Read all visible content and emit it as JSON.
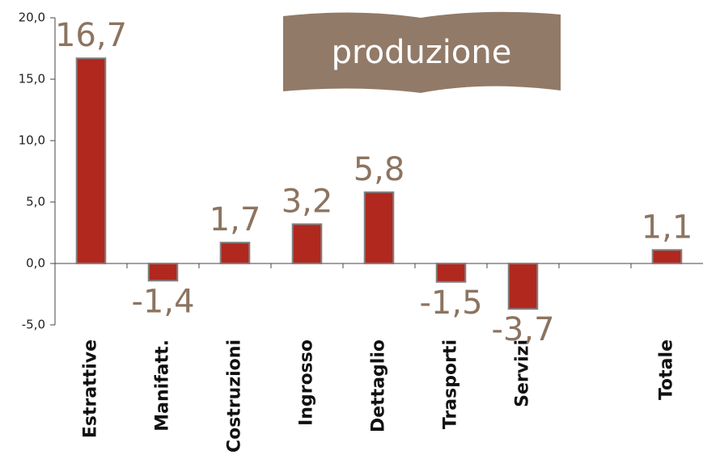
{
  "chart_data": {
    "type": "bar",
    "title": "produzione",
    "categories": [
      "Estrattive",
      "Manifatt.",
      "Costruzioni",
      "Ingrosso",
      "Dettaglio",
      "Trasporti",
      "Servizi",
      null,
      "Totale"
    ],
    "values": [
      16.7,
      -1.4,
      1.7,
      3.2,
      5.8,
      -1.5,
      -3.7,
      null,
      1.1
    ],
    "value_labels": [
      "16,7",
      "-1,4",
      "1,7",
      "3,2",
      "5,8",
      "-1,5",
      "-3,7",
      null,
      "1,1"
    ],
    "color": "#b0281e",
    "ylim": [
      -5,
      20
    ],
    "yticks": [
      {
        "value": -5,
        "label": "-5,0"
      },
      {
        "value": 0,
        "label": "0,0"
      },
      {
        "value": 5,
        "label": "5,0"
      },
      {
        "value": 10,
        "label": "10,0"
      },
      {
        "value": 15,
        "label": "15,0"
      },
      {
        "value": 20,
        "label": "20,0"
      }
    ]
  }
}
